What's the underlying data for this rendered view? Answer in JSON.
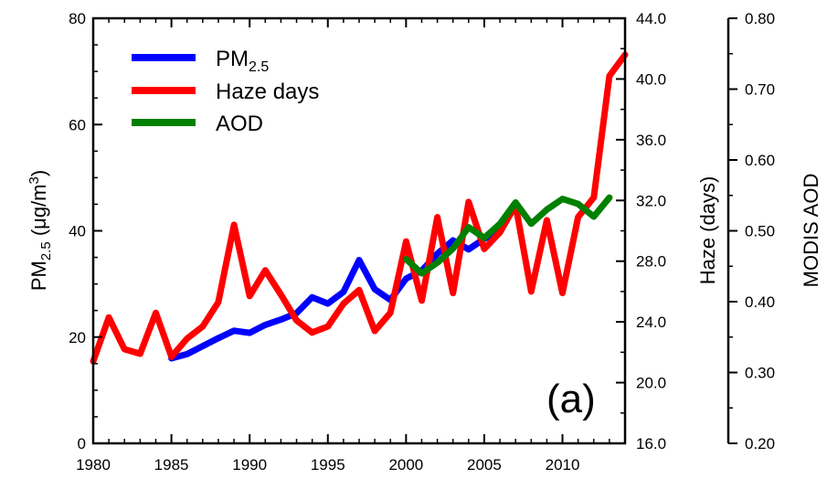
{
  "chart_data": {
    "type": "line",
    "panel_label": "(a)",
    "x_axis": {
      "range": [
        1980,
        2014
      ],
      "ticks": [
        1980,
        1985,
        1990,
        1995,
        2000,
        2005,
        2010
      ],
      "tick_labels": [
        "1980",
        "1985",
        "1990",
        "1995",
        "2000",
        "2005",
        "2010"
      ]
    },
    "y_axes": {
      "left": {
        "label_main": "PM",
        "label_sub": "2.5",
        "label_unit": " (μg/m",
        "label_sup": "3",
        "label_close": ")",
        "range": [
          0,
          80
        ],
        "ticks": [
          0,
          20,
          40,
          60,
          80
        ],
        "tick_labels": [
          "0",
          "20",
          "40",
          "60",
          "80"
        ]
      },
      "right": {
        "label": "Haze (days)",
        "range": [
          16,
          44
        ],
        "ticks": [
          16,
          20,
          24,
          28,
          32,
          36,
          40,
          44
        ],
        "tick_labels": [
          "16.0",
          "20.0",
          "24.0",
          "28.0",
          "32.0",
          "36.0",
          "40.0",
          "44.0"
        ]
      },
      "far_right": {
        "label": "MODIS AOD",
        "range": [
          0.2,
          0.8
        ],
        "ticks": [
          0.2,
          0.3,
          0.4,
          0.5,
          0.6,
          0.7,
          0.8
        ],
        "tick_labels": [
          "0.20",
          "0.30",
          "0.40",
          "0.50",
          "0.60",
          "0.70",
          "0.80"
        ]
      }
    },
    "legend": {
      "position": "top-left",
      "entries": [
        {
          "main": "PM",
          "sub": "2.5"
        },
        {
          "main": "Haze days",
          "sub": ""
        },
        {
          "main": "AOD",
          "sub": ""
        }
      ]
    },
    "series": [
      {
        "name": "PM2.5",
        "axis": "left",
        "color": "#0000ff",
        "x": [
          1985,
          1986,
          1987,
          1988,
          1989,
          1990,
          1991,
          1992,
          1993,
          1994,
          1995,
          1996,
          1997,
          1998,
          1999,
          2000,
          2001,
          2002,
          2003,
          2004,
          2005,
          2006
        ],
        "y": [
          16,
          16.8,
          18.3,
          19.8,
          21.2,
          20.8,
          22.3,
          23.3,
          24.5,
          27.5,
          26.3,
          28.5,
          34.5,
          29,
          27,
          31,
          32.5,
          35.7,
          38.2,
          36.5,
          38.5,
          40
        ]
      },
      {
        "name": "Haze days",
        "axis": "right",
        "color": "#ff0000",
        "x": [
          1980,
          1981,
          1982,
          1983,
          1984,
          1985,
          1986,
          1987,
          1988,
          1989,
          1990,
          1991,
          1992,
          1993,
          1994,
          1995,
          1996,
          1997,
          1998,
          1999,
          2000,
          2001,
          2002,
          2003,
          2004,
          2005,
          2006,
          2007,
          2008,
          2009,
          2010,
          2011,
          2012,
          2013,
          2014
        ],
        "y": [
          21.4,
          24.3,
          22.2,
          21.9,
          24.6,
          21.7,
          22.9,
          23.7,
          25.3,
          30.4,
          25.7,
          27.4,
          25.8,
          24.1,
          23.3,
          23.7,
          25.2,
          26.1,
          23.4,
          24.6,
          29.3,
          25.4,
          30.9,
          25.9,
          31.9,
          28.8,
          29.9,
          31.7,
          26,
          30.7,
          25.9,
          30.9,
          32.2,
          40.2,
          41.6
        ]
      },
      {
        "name": "AOD",
        "axis": "far_right",
        "color": "#008000",
        "x": [
          2000,
          2001,
          2002,
          2003,
          2004,
          2005,
          2006,
          2007,
          2008,
          2009,
          2010,
          2011,
          2012,
          2013
        ],
        "y": [
          0.46,
          0.44,
          0.455,
          0.475,
          0.505,
          0.49,
          0.51,
          0.54,
          0.51,
          0.53,
          0.545,
          0.538,
          0.52,
          0.547
        ]
      }
    ]
  }
}
